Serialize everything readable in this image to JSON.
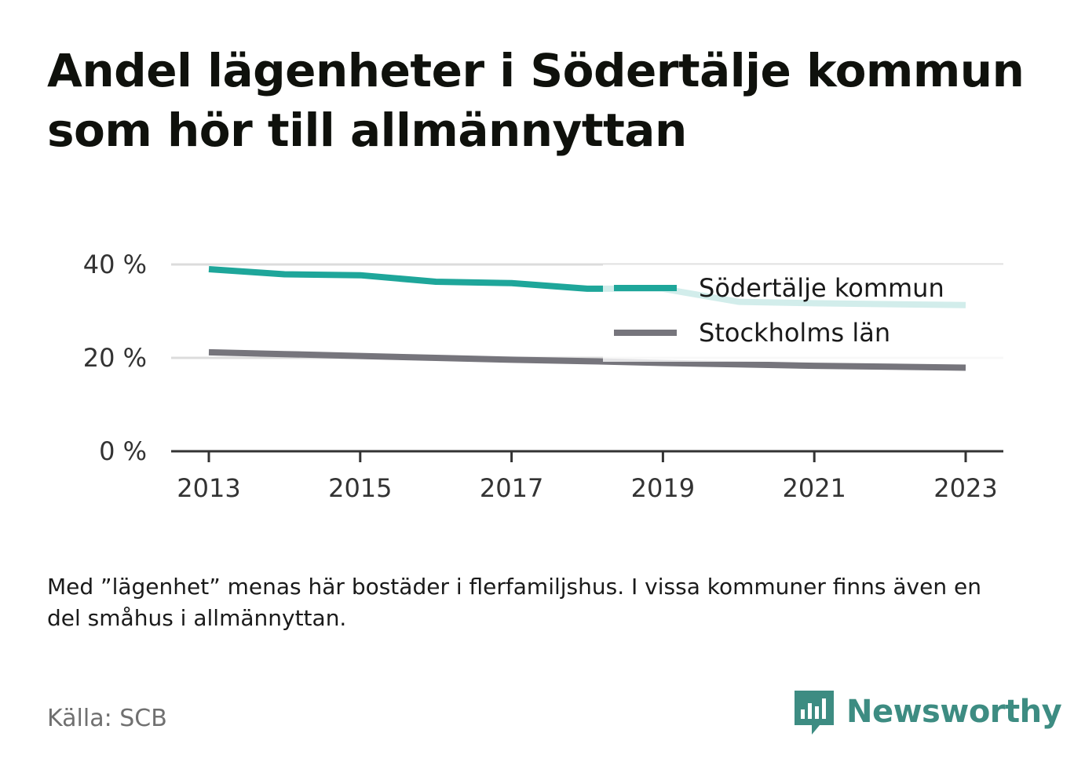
{
  "title": "Andel lägenheter i Södertälje kommun som hör till allmännyttan",
  "note": "Med ”lägenhet” menas här bostäder i flerfamiljshus. I vissa kommuner finns även en del småhus i allmännyttan.",
  "source": "Källa: SCB",
  "brand": {
    "name": "Newsworthy",
    "icon": "newsworthy-logo-icon",
    "color": "#3d8c82"
  },
  "chart_data": {
    "type": "line",
    "x": [
      2013,
      2014,
      2015,
      2016,
      2017,
      2018,
      2019,
      2020,
      2021,
      2022,
      2023
    ],
    "x_ticks": [
      "2013",
      "2015",
      "2017",
      "2019",
      "2021",
      "2023"
    ],
    "y_ticks": [
      "0 %",
      "20 %",
      "40 %"
    ],
    "ylim": [
      0,
      40
    ],
    "grid": true,
    "legend_position": "top-right",
    "series": [
      {
        "name": "Södertälje kommun",
        "color": "#1ea69a",
        "values": [
          39.0,
          37.9,
          37.7,
          36.3,
          36.0,
          34.8,
          34.8,
          32.0,
          31.7,
          31.5,
          31.3
        ]
      },
      {
        "name": "Stockholms län",
        "color": "#76757c",
        "values": [
          21.2,
          20.8,
          20.4,
          20.0,
          19.6,
          19.3,
          18.9,
          18.6,
          18.3,
          18.1,
          17.9
        ]
      }
    ]
  }
}
